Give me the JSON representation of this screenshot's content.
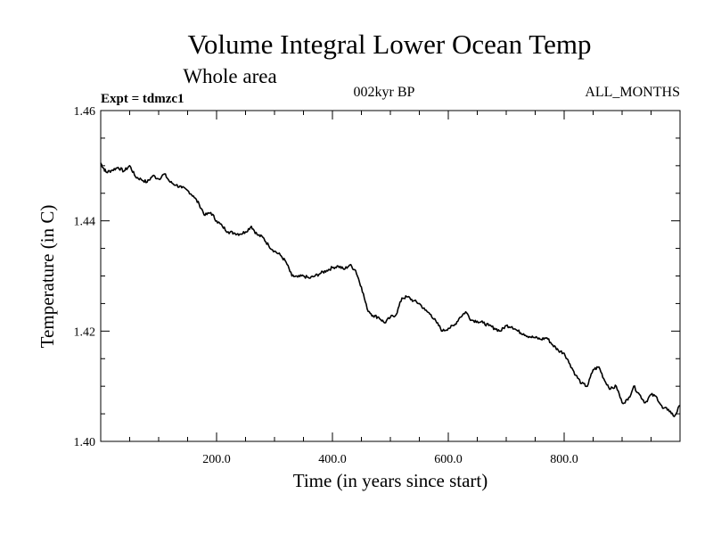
{
  "header": {
    "expt": "Expt = tdmzc1",
    "epoch": "002kyr BP",
    "months": "ALL_MONTHS"
  },
  "chart_data": {
    "type": "line",
    "title": "Volume Integral Lower Ocean Temp",
    "subtitle": "Whole area",
    "xlabel": "Time (in years since start)",
    "ylabel": "Temperature (in C)",
    "xlim": [
      0,
      1000
    ],
    "ylim": [
      1.4,
      1.46
    ],
    "xticks": [
      {
        "value": 200,
        "label": "200.0"
      },
      {
        "value": 400,
        "label": "400.0"
      },
      {
        "value": 600,
        "label": "600.0"
      },
      {
        "value": 800,
        "label": "800.0"
      }
    ],
    "yticks": [
      {
        "value": 1.4,
        "label": "1.40"
      },
      {
        "value": 1.42,
        "label": "1.42"
      },
      {
        "value": 1.44,
        "label": "1.44"
      },
      {
        "value": 1.46,
        "label": "1.46"
      }
    ],
    "series": [
      {
        "name": "Temperature",
        "x": [
          0,
          5,
          10,
          20,
          30,
          40,
          50,
          60,
          70,
          80,
          90,
          100,
          110,
          120,
          130,
          140,
          150,
          160,
          170,
          180,
          190,
          200,
          210,
          220,
          230,
          240,
          250,
          260,
          270,
          280,
          290,
          300,
          310,
          320,
          330,
          340,
          350,
          360,
          370,
          380,
          390,
          400,
          410,
          420,
          430,
          440,
          450,
          460,
          470,
          480,
          490,
          500,
          510,
          520,
          530,
          540,
          550,
          560,
          570,
          580,
          590,
          600,
          610,
          620,
          630,
          640,
          650,
          660,
          670,
          680,
          690,
          700,
          710,
          720,
          730,
          740,
          750,
          760,
          770,
          780,
          790,
          800,
          810,
          820,
          830,
          840,
          850,
          860,
          870,
          880,
          890,
          900,
          910,
          920,
          930,
          940,
          950,
          960,
          970,
          980,
          990,
          1000
        ],
        "y": [
          1.4505,
          1.4495,
          1.4488,
          1.4492,
          1.4497,
          1.449,
          1.45,
          1.448,
          1.4475,
          1.447,
          1.4482,
          1.4476,
          1.4485,
          1.447,
          1.4465,
          1.446,
          1.4455,
          1.4445,
          1.443,
          1.441,
          1.4415,
          1.44,
          1.439,
          1.438,
          1.4378,
          1.4376,
          1.438,
          1.439,
          1.4375,
          1.437,
          1.4355,
          1.4345,
          1.4338,
          1.4325,
          1.43,
          1.4298,
          1.43,
          1.4296,
          1.43,
          1.4305,
          1.431,
          1.4315,
          1.4318,
          1.4312,
          1.432,
          1.431,
          1.428,
          1.424,
          1.4228,
          1.4225,
          1.4215,
          1.4225,
          1.423,
          1.426,
          1.4262,
          1.4255,
          1.425,
          1.4238,
          1.423,
          1.4215,
          1.42,
          1.4205,
          1.421,
          1.4225,
          1.4235,
          1.422,
          1.4218,
          1.4215,
          1.421,
          1.4205,
          1.42,
          1.421,
          1.4208,
          1.42,
          1.4195,
          1.419,
          1.4188,
          1.4185,
          1.4188,
          1.4175,
          1.4165,
          1.416,
          1.414,
          1.412,
          1.4105,
          1.41,
          1.413,
          1.4135,
          1.411,
          1.4095,
          1.41,
          1.407,
          1.4075,
          1.41,
          1.4085,
          1.407,
          1.4085,
          1.408,
          1.406,
          1.4058,
          1.4045,
          1.4065
        ]
      }
    ]
  }
}
